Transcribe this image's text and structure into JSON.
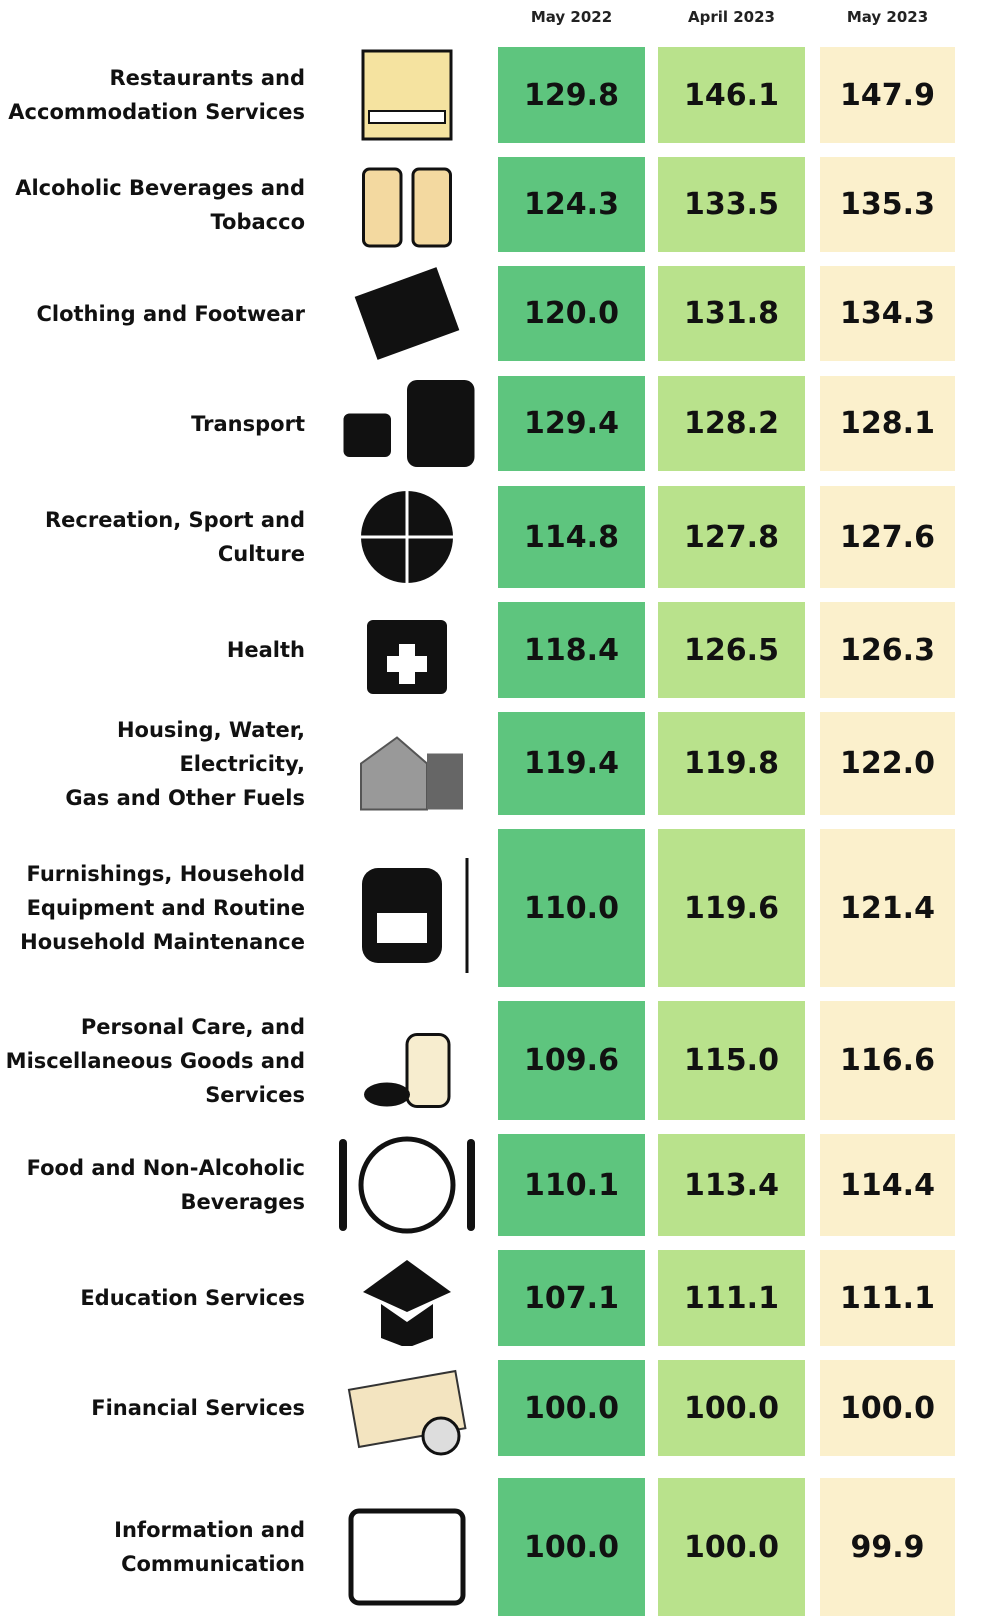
{
  "header": {
    "columns": [
      "May 2022",
      "April 2023",
      "May 2023"
    ]
  },
  "table": {
    "rows": [
      {
        "label": [
          "Restaurants and",
          "Accommodation Services"
        ],
        "values": [
          "129.8",
          "146.1",
          "147.9"
        ]
      },
      {
        "label": [
          "Alcoholic Beverages and",
          "Tobacco"
        ],
        "values": [
          "124.3",
          "133.5",
          "135.3"
        ]
      },
      {
        "label": [
          "Clothing and Footwear"
        ],
        "values": [
          "120.0",
          "131.8",
          "134.3"
        ]
      },
      {
        "label": [
          "Transport"
        ],
        "values": [
          "129.4",
          "128.2",
          "128.1"
        ]
      },
      {
        "label": [
          "Recreation, Sport and",
          "Culture"
        ],
        "values": [
          "114.8",
          "127.8",
          "127.6"
        ]
      },
      {
        "label": [
          "Health"
        ],
        "values": [
          "118.4",
          "126.5",
          "126.3"
        ]
      },
      {
        "label": [
          "Housing, Water, Electricity,",
          "Gas and Other Fuels"
        ],
        "values": [
          "119.4",
          "119.8",
          "122.0"
        ]
      },
      {
        "label": [
          "Furnishings, Household",
          "Equipment and Routine",
          "Household Maintenance"
        ],
        "values": [
          "110.0",
          "119.6",
          "121.4"
        ]
      },
      {
        "label": [
          "Personal Care, and",
          "Miscellaneous Goods and",
          "Services"
        ],
        "values": [
          "109.6",
          "115.0",
          "116.6"
        ]
      },
      {
        "label": [
          "Food and Non-Alcoholic",
          "Beverages"
        ],
        "values": [
          "110.1",
          "113.4",
          "114.4"
        ]
      },
      {
        "label": [
          "Education Services"
        ],
        "values": [
          "107.1",
          "111.1",
          "111.1"
        ]
      },
      {
        "label": [
          "Financial Services"
        ],
        "values": [
          "100.0",
          "100.0",
          "100.0"
        ]
      },
      {
        "label": [
          "Information and",
          "Communication"
        ],
        "values": [
          "100.0",
          "100.0",
          "99.9"
        ]
      }
    ]
  }
}
